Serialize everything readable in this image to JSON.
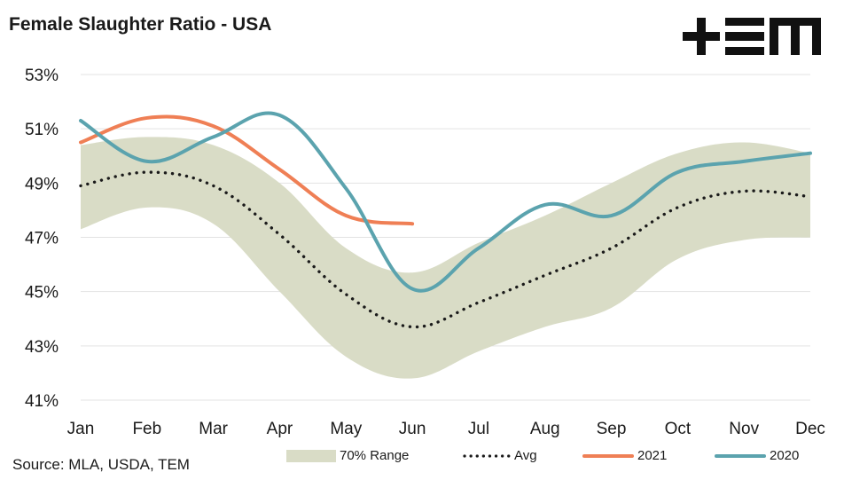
{
  "title": "Female Slaughter Ratio - USA",
  "logo_text": "+EM",
  "source": "Source: MLA, USDA, TEM",
  "colors": {
    "range": "#d9dcc6",
    "avg": "#1a1a1a",
    "s2021": "#ef7f55",
    "s2020": "#5ba3ae",
    "grid": "#e3e3e3"
  },
  "chart_data": {
    "type": "line",
    "x": [
      "Jan",
      "Feb",
      "Mar",
      "Apr",
      "May",
      "Jun",
      "Jul",
      "Aug",
      "Sep",
      "Oct",
      "Nov",
      "Dec"
    ],
    "ylim": [
      41,
      53
    ],
    "yticks": [
      "41%",
      "43%",
      "45%",
      "47%",
      "49%",
      "51%",
      "53%"
    ],
    "grid": true,
    "legend_position": "bottom",
    "range_band": {
      "name": "70% Range",
      "upper": [
        50.4,
        50.7,
        50.4,
        49.0,
        46.6,
        45.7,
        46.8,
        47.8,
        49.0,
        50.1,
        50.5,
        50.1
      ],
      "lower": [
        47.3,
        48.1,
        47.5,
        45.0,
        42.6,
        41.8,
        42.8,
        43.7,
        44.4,
        46.2,
        46.9,
        47.0
      ]
    },
    "series": [
      {
        "name": "Avg",
        "values": [
          48.9,
          49.4,
          48.9,
          47.1,
          44.9,
          43.7,
          44.6,
          45.6,
          46.6,
          48.1,
          48.7,
          48.5
        ]
      },
      {
        "name": "2021",
        "values": [
          50.5,
          51.4,
          51.1,
          49.5,
          47.8,
          47.5,
          null,
          null,
          null,
          null,
          null,
          null
        ]
      },
      {
        "name": "2020",
        "values": [
          51.3,
          49.8,
          50.7,
          51.5,
          48.8,
          45.1,
          46.6,
          48.2,
          47.8,
          49.4,
          49.8,
          50.1
        ]
      }
    ]
  }
}
